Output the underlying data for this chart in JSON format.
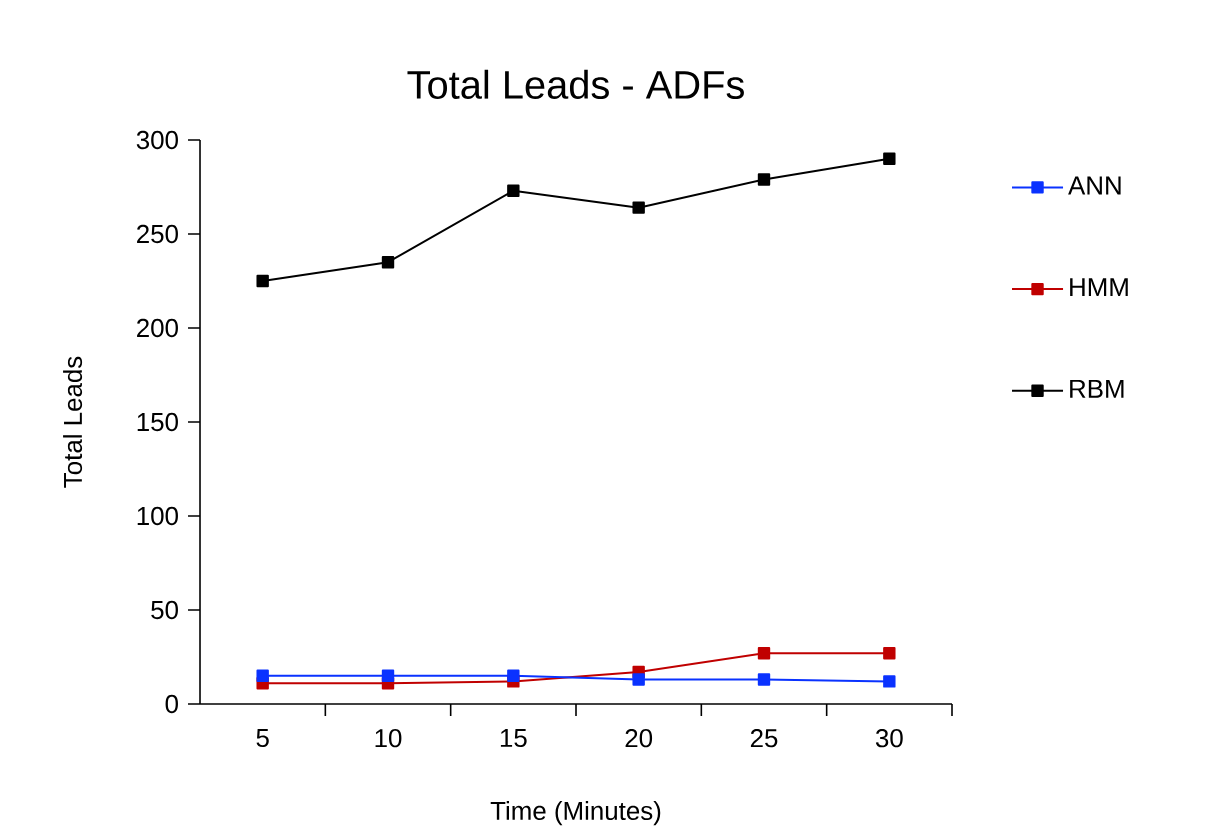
{
  "chart_data": {
    "type": "line",
    "title": "Total Leads - ADFs",
    "xlabel": "Time (Minutes)",
    "ylabel": "Total Leads",
    "x": [
      5,
      10,
      15,
      20,
      25,
      30
    ],
    "series": [
      {
        "name": "ANN",
        "color": "#0a32ff",
        "values": [
          15,
          15,
          15,
          13,
          13,
          12
        ]
      },
      {
        "name": "HMM",
        "color": "#c00000",
        "values": [
          11,
          11,
          12,
          17,
          27,
          27
        ]
      },
      {
        "name": "RBM",
        "color": "#000000",
        "values": [
          225,
          235,
          273,
          264,
          279,
          290
        ]
      }
    ],
    "xlim": [
      2.5,
      32.5
    ],
    "ylim": [
      0,
      300
    ],
    "xticks": [
      5,
      10,
      15,
      20,
      25,
      30,
      {
        "value": 7.5,
        "label": null
      },
      {
        "value": 12.5,
        "label": null
      },
      {
        "value": 17.5,
        "label": null
      },
      {
        "value": 22.5,
        "label": null
      },
      {
        "value": 27.5,
        "label": null
      },
      {
        "value": 32.5,
        "label": null
      }
    ],
    "yticks": [
      0,
      50,
      100,
      150,
      200,
      250,
      300
    ],
    "marker": "square",
    "legend": "right",
    "grid": false
  }
}
